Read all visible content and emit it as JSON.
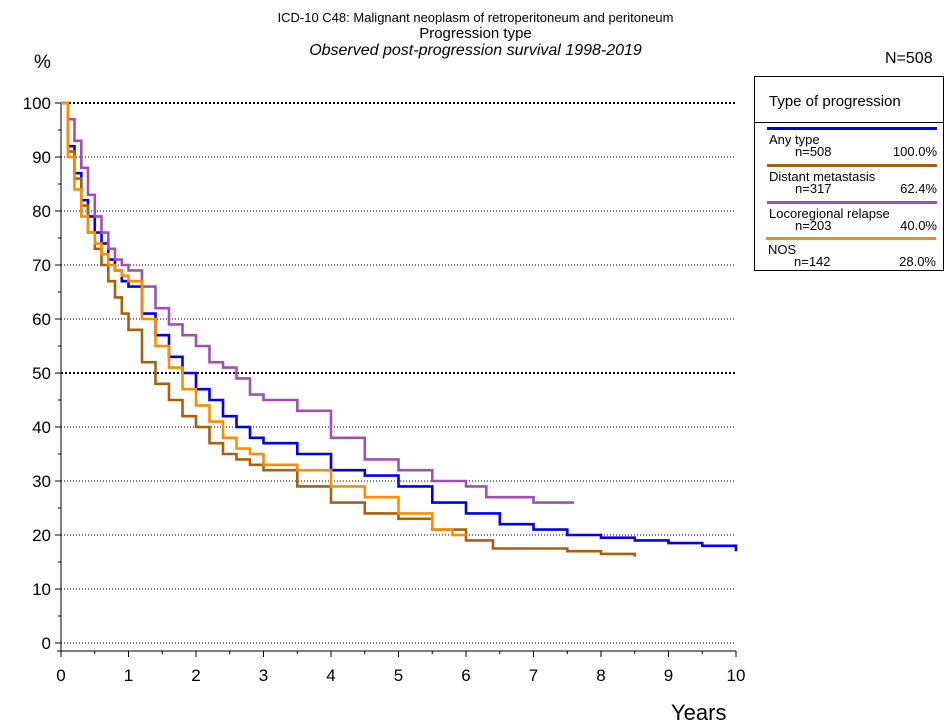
{
  "titles": {
    "line1": "ICD-10 C48: Malignant neoplasm of retroperitoneum and peritoneum",
    "line2": "Progression type",
    "line3": "Observed post-progression survival 1998-2019"
  },
  "n_total_label": "N=508",
  "legend": {
    "title": "Type of progression",
    "items": [
      {
        "name": "Any type",
        "n": "n=508",
        "pct": "100.0%",
        "color": "#0000ee"
      },
      {
        "name": "Distant metastasis",
        "n": "n=317",
        "pct": "62.4%",
        "color": "#a8600a"
      },
      {
        "name": "Locoregional relapse",
        "n": "n=203",
        "pct": "40.0%",
        "color": "#a050b4"
      },
      {
        "name": "NOS",
        "n": "n=142",
        "pct": "28.0%",
        "color": "#ff8c00"
      }
    ]
  },
  "chart_data": {
    "type": "line",
    "title": "Observed post-progression survival 1998-2019",
    "xlabel": "Years",
    "ylabel": "%",
    "xlim": [
      0,
      10
    ],
    "ylim": [
      0,
      100
    ],
    "x_ticks": [
      "0",
      "1",
      "2",
      "3",
      "4",
      "5",
      "6",
      "7",
      "8",
      "9",
      "10"
    ],
    "y_ticks": [
      "0",
      "10",
      "20",
      "30",
      "40",
      "50",
      "60",
      "70",
      "80",
      "90",
      "100"
    ],
    "grid": "dotted horizontal at every 10%, heavier at 0, 50 and 100",
    "legend_position": "top-right, outside plot",
    "series": [
      {
        "name": "Any type",
        "color": "#0000ee",
        "step": true,
        "x": [
          0,
          0.1,
          0.2,
          0.3,
          0.4,
          0.5,
          0.6,
          0.7,
          0.8,
          0.9,
          1.0,
          1.2,
          1.4,
          1.6,
          1.8,
          2.0,
          2.2,
          2.4,
          2.6,
          2.8,
          3.0,
          3.5,
          4.0,
          4.5,
          5.0,
          5.5,
          6.0,
          6.5,
          7.0,
          7.5,
          8.0,
          8.5,
          9.0,
          9.5,
          9.9,
          10.0
        ],
        "y": [
          100,
          92,
          87,
          82,
          79,
          76,
          74,
          71,
          69,
          67,
          66,
          61,
          57,
          53,
          50,
          47,
          45,
          42,
          40,
          38,
          37,
          35,
          32,
          31,
          29,
          26,
          24,
          22,
          21,
          20,
          19.5,
          19,
          18.5,
          18,
          18,
          17
        ]
      },
      {
        "name": "Distant metastasis",
        "color": "#a8600a",
        "step": true,
        "x": [
          0,
          0.1,
          0.2,
          0.3,
          0.4,
          0.5,
          0.6,
          0.7,
          0.8,
          0.9,
          1.0,
          1.2,
          1.4,
          1.6,
          1.8,
          2.0,
          2.2,
          2.4,
          2.6,
          2.8,
          3.0,
          3.5,
          4.0,
          4.5,
          5.0,
          5.5,
          6.0,
          6.4,
          7.0,
          7.5,
          8.0,
          8.5
        ],
        "y": [
          100,
          91,
          86,
          81,
          76,
          73,
          70,
          67,
          64,
          61,
          58,
          52,
          48,
          45,
          42,
          40,
          37,
          35,
          34,
          33,
          32,
          29,
          26,
          24,
          23,
          21,
          19,
          17.5,
          17.5,
          17,
          16.5,
          16
        ]
      },
      {
        "name": "Locoregional relapse",
        "color": "#a050b4",
        "step": true,
        "x": [
          0,
          0.1,
          0.2,
          0.3,
          0.4,
          0.5,
          0.6,
          0.7,
          0.8,
          0.9,
          1.0,
          1.2,
          1.4,
          1.6,
          1.8,
          2.0,
          2.2,
          2.4,
          2.6,
          2.8,
          3.0,
          3.5,
          4.0,
          4.5,
          5.0,
          5.5,
          6.0,
          6.3,
          6.8,
          7.0,
          7.6
        ],
        "y": [
          100,
          97,
          93,
          88,
          83,
          79,
          76,
          73,
          71,
          70,
          69,
          66,
          62,
          59,
          57,
          55,
          52,
          51,
          49,
          46,
          45,
          43,
          38,
          34,
          32,
          30,
          29,
          27,
          27,
          26,
          26
        ]
      },
      {
        "name": "NOS",
        "color": "#ff8c00",
        "step": true,
        "x": [
          0,
          0.1,
          0.2,
          0.3,
          0.4,
          0.5,
          0.6,
          0.7,
          0.8,
          0.9,
          1.0,
          1.2,
          1.4,
          1.6,
          1.8,
          2.0,
          2.2,
          2.4,
          2.6,
          2.8,
          3.0,
          3.5,
          4.0,
          4.5,
          5.0,
          5.5,
          5.8,
          6.0
        ],
        "y": [
          100,
          90,
          84,
          79,
          76,
          74,
          72,
          70,
          69,
          68,
          67,
          60,
          55,
          51,
          47,
          44,
          41,
          38,
          36,
          35,
          33,
          32,
          29,
          27,
          24,
          21,
          20,
          20
        ]
      }
    ]
  }
}
